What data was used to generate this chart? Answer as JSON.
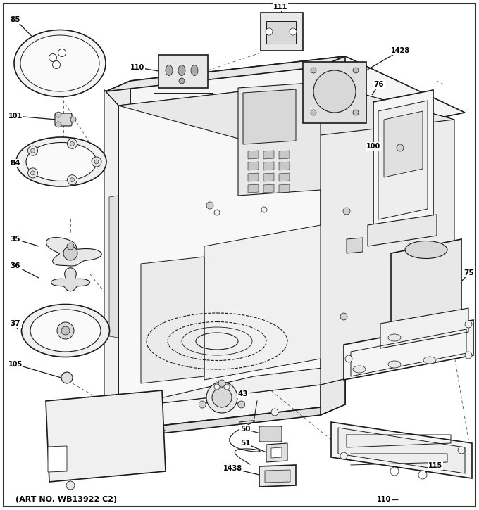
{
  "bg_color": "#ffffff",
  "line_color": "#1a1a1a",
  "label_color": "#000000",
  "fig_width": 6.8,
  "fig_height": 7.25,
  "dpi": 100,
  "bottom_text": "(ART NO. WB13922 C2)",
  "border_color": "#333333"
}
